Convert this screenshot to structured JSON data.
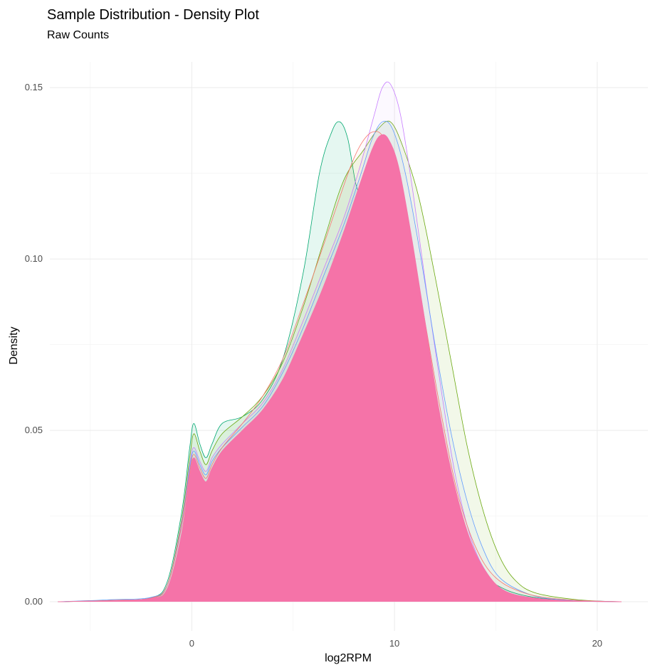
{
  "chart_data": {
    "type": "area",
    "title": "Sample Distribution - Density Plot",
    "subtitle": "Raw Counts",
    "xlabel": "log2RPM",
    "ylabel": "Density",
    "xlim": [
      -7,
      22.5
    ],
    "ylim": [
      -0.0085,
      0.1575
    ],
    "x_ticks": [
      0,
      10,
      20
    ],
    "y_ticks": [
      0.0,
      0.05,
      0.1,
      0.15
    ],
    "x_tick_labels": [
      "0",
      "10",
      "20"
    ],
    "y_tick_labels": [
      "0.00",
      "0.05",
      "0.10",
      "0.15"
    ],
    "grid": true,
    "legend": "none",
    "series": [
      {
        "color": "#00a76f",
        "fill": "rgba(0,180,120,0.10)",
        "x": [
          -6.6,
          -4,
          -2,
          -1.2,
          -0.5,
          -0.1,
          0.1,
          0.4,
          0.7,
          1.0,
          1.5,
          2.5,
          3.5,
          4.5,
          5.5,
          6.3,
          6.9,
          7.3,
          7.7,
          8.2,
          8.8,
          9.6,
          10.2,
          11,
          11.8,
          12.6,
          13.4,
          14.5,
          15.5,
          17,
          19,
          21.2
        ],
        "y": [
          0,
          0.0004,
          0.0012,
          0.006,
          0.026,
          0.045,
          0.052,
          0.046,
          0.042,
          0.046,
          0.052,
          0.054,
          0.059,
          0.071,
          0.096,
          0.125,
          0.137,
          0.14,
          0.135,
          0.12,
          0.123,
          0.13,
          0.12,
          0.095,
          0.065,
          0.038,
          0.02,
          0.008,
          0.0035,
          0.0012,
          0.0003,
          0
        ]
      },
      {
        "color": "#6aa80f",
        "fill": "rgba(130,190,40,0.10)",
        "x": [
          -6.6,
          -4,
          -2,
          -1.2,
          -0.5,
          -0.1,
          0.1,
          0.4,
          0.7,
          1.0,
          1.5,
          2.5,
          3.5,
          4.5,
          5.5,
          6.5,
          7.5,
          8.5,
          9.2,
          9.8,
          10.4,
          11.2,
          12,
          12.8,
          13.6,
          14.4,
          15.2,
          16,
          17,
          19,
          21.2
        ],
        "y": [
          0,
          0.0004,
          0.0011,
          0.005,
          0.024,
          0.042,
          0.049,
          0.044,
          0.04,
          0.044,
          0.049,
          0.054,
          0.06,
          0.07,
          0.086,
          0.105,
          0.123,
          0.132,
          0.138,
          0.14,
          0.133,
          0.118,
          0.095,
          0.07,
          0.045,
          0.026,
          0.013,
          0.006,
          0.0025,
          0.0006,
          0
        ]
      },
      {
        "color": "#c77cff",
        "fill": "rgba(200,130,255,0.05)",
        "x": [
          -6.6,
          -4,
          -2,
          -1.2,
          -0.5,
          -0.1,
          0.1,
          0.4,
          0.7,
          1.0,
          1.5,
          2.5,
          3.5,
          4.5,
          5.5,
          6.5,
          7.5,
          8.3,
          9.0,
          9.4,
          9.8,
          10.3,
          10.9,
          11.6,
          12.3,
          13,
          13.8,
          14.6,
          15.5,
          17,
          19,
          21.2
        ],
        "y": [
          0,
          0.0004,
          0.0011,
          0.005,
          0.023,
          0.04,
          0.045,
          0.041,
          0.038,
          0.042,
          0.046,
          0.052,
          0.058,
          0.068,
          0.082,
          0.097,
          0.112,
          0.127,
          0.142,
          0.15,
          0.151,
          0.142,
          0.12,
          0.09,
          0.062,
          0.037,
          0.018,
          0.008,
          0.003,
          0.001,
          0.0002,
          0
        ]
      },
      {
        "color": "#619cff",
        "fill": "rgba(100,150,255,0.06)",
        "x": [
          -6.6,
          -4,
          -2,
          -1.2,
          -0.5,
          -0.1,
          0.1,
          0.4,
          0.7,
          1.0,
          1.5,
          2.5,
          3.5,
          4.5,
          5.5,
          6.5,
          7.5,
          8.3,
          8.9,
          9.4,
          9.9,
          10.5,
          11.2,
          12,
          12.8,
          13.6,
          14.4,
          15.2,
          16.5,
          18,
          21.2
        ],
        "y": [
          0,
          0.0006,
          0.0013,
          0.005,
          0.022,
          0.039,
          0.044,
          0.04,
          0.037,
          0.041,
          0.045,
          0.051,
          0.057,
          0.067,
          0.08,
          0.095,
          0.11,
          0.124,
          0.135,
          0.14,
          0.138,
          0.126,
          0.104,
          0.075,
          0.049,
          0.029,
          0.015,
          0.007,
          0.0025,
          0.0007,
          0
        ]
      },
      {
        "color": "#f8766d",
        "fill": "rgba(248,118,109,0.04)",
        "x": [
          -6.6,
          -4,
          -2,
          -1.2,
          -0.5,
          -0.1,
          0.1,
          0.4,
          0.7,
          1.0,
          1.5,
          2.5,
          3.5,
          4.5,
          5.5,
          6.5,
          7.3,
          7.9,
          8.4,
          8.9,
          9.4,
          10.0,
          10.7,
          11.5,
          12.3,
          13.1,
          14,
          15,
          16.5,
          18.5,
          21.2
        ],
        "y": [
          0,
          0.0004,
          0.0011,
          0.005,
          0.022,
          0.038,
          0.043,
          0.039,
          0.036,
          0.04,
          0.045,
          0.052,
          0.06,
          0.071,
          0.087,
          0.104,
          0.118,
          0.128,
          0.134,
          0.137,
          0.136,
          0.128,
          0.11,
          0.082,
          0.055,
          0.032,
          0.016,
          0.007,
          0.0024,
          0.0006,
          0
        ]
      },
      {
        "color": "#f573a8",
        "fill": "#f573a8",
        "x": [
          -6.6,
          -4,
          -2,
          -1.2,
          -0.5,
          -0.1,
          0.1,
          0.4,
          0.7,
          1.0,
          1.5,
          2.5,
          3.5,
          4.5,
          5.5,
          6.5,
          7.5,
          8.3,
          8.9,
          9.3,
          9.7,
          10.2,
          10.8,
          11.5,
          12.2,
          13,
          13.8,
          14.6,
          15.5,
          17,
          19,
          21.2
        ],
        "y": [
          0,
          0.0003,
          0.001,
          0.004,
          0.02,
          0.037,
          0.042,
          0.038,
          0.035,
          0.039,
          0.044,
          0.05,
          0.056,
          0.065,
          0.078,
          0.092,
          0.108,
          0.122,
          0.132,
          0.136,
          0.135,
          0.127,
          0.108,
          0.082,
          0.056,
          0.033,
          0.017,
          0.008,
          0.003,
          0.001,
          0.0002,
          0
        ]
      }
    ]
  }
}
